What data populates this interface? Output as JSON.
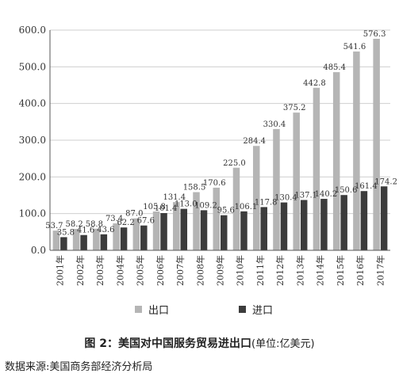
{
  "chart_data": {
    "type": "bar",
    "categories": [
      "2001年",
      "2002年",
      "2003年",
      "2004年",
      "2005年",
      "2006年",
      "2007年",
      "2008年",
      "2009年",
      "2010年",
      "2011年",
      "2012年",
      "2013年",
      "2014年",
      "2015年",
      "2016年",
      "2017年"
    ],
    "series": [
      {
        "name": "出口",
        "color": "#b5b5b5",
        "labels": [
          "53.7",
          "58.2",
          "58.8",
          "73.4",
          "87.0",
          "105.8",
          "131.4",
          "158.5",
          "170.6",
          "225.0",
          "284.4",
          "330.4",
          "375.2",
          "442.8",
          "485.4",
          "541.6",
          "576.3"
        ],
        "values": [
          53.7,
          58.2,
          58.8,
          73.4,
          87.0,
          105.8,
          131.4,
          158.5,
          170.6,
          225.0,
          284.4,
          330.4,
          375.2,
          442.8,
          485.4,
          541.6,
          576.3
        ]
      },
      {
        "name": "进口",
        "color": "#3c3c3c",
        "labels": [
          "35.8",
          "41.6",
          "43.6",
          "62.2",
          "67.6",
          "101.4",
          "113.0",
          "109.2",
          "95.6",
          "106.1",
          "117.8",
          "130.4",
          "137.1",
          "140.2",
          "150.6",
          "161.4",
          "174.2"
        ],
        "values": [
          35.8,
          41.6,
          43.6,
          62.2,
          67.6,
          101.4,
          113.0,
          109.2,
          95.6,
          106.1,
          117.8,
          130.4,
          137.1,
          140.2,
          150.6,
          161.4,
          174.2
        ]
      }
    ],
    "yticks": [
      "0.0",
      "100.0",
      "200.0",
      "300.0",
      "400.0",
      "500.0",
      "600.0"
    ],
    "ylim": [
      0,
      600
    ],
    "grid": true,
    "legend_position": "bottom"
  },
  "caption": {
    "title": "图 2：美国对中国服务贸易进出口",
    "unit": "(单位:亿美元)"
  },
  "source": "数据来源:美国商务部经济分析局"
}
